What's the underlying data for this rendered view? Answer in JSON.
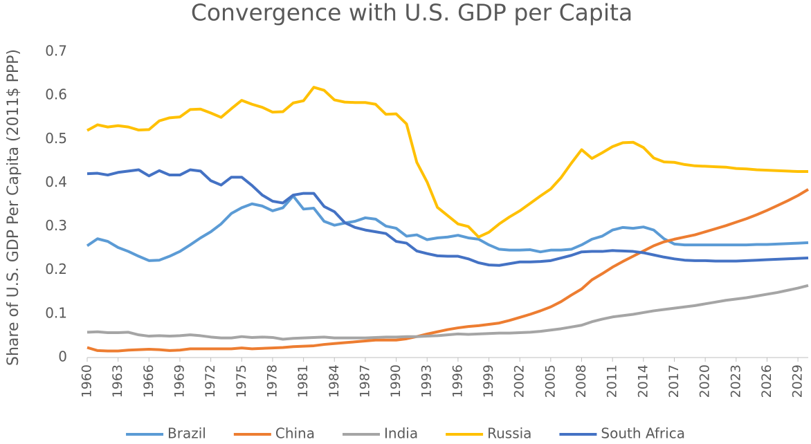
{
  "chart_data": {
    "type": "line",
    "title": "Convergence with U.S. GDP per Capita",
    "ylabel": "Share of U.S. GDP Per Capita (2011$ PPP)",
    "x": [
      1960,
      1961,
      1962,
      1963,
      1964,
      1965,
      1966,
      1967,
      1968,
      1969,
      1970,
      1971,
      1972,
      1973,
      1974,
      1975,
      1976,
      1977,
      1978,
      1979,
      1980,
      1981,
      1982,
      1983,
      1984,
      1985,
      1986,
      1987,
      1988,
      1989,
      1990,
      1991,
      1992,
      1993,
      1994,
      1995,
      1996,
      1997,
      1998,
      1999,
      2000,
      2001,
      2002,
      2003,
      2004,
      2005,
      2006,
      2007,
      2008,
      2009,
      2010,
      2011,
      2012,
      2013,
      2014,
      2015,
      2016,
      2017,
      2018,
      2019,
      2020,
      2021,
      2022,
      2023,
      2024,
      2025,
      2026,
      2027,
      2028,
      2029,
      2030
    ],
    "xlim": [
      1960,
      2030
    ],
    "xticks": [
      1960,
      1963,
      1966,
      1969,
      1972,
      1975,
      1978,
      1981,
      1984,
      1987,
      1990,
      1993,
      1996,
      1999,
      2002,
      2005,
      2008,
      2011,
      2014,
      2017,
      2020,
      2023,
      2026,
      2029
    ],
    "ylim": [
      0,
      0.7
    ],
    "yticks": [
      0,
      0.1,
      0.2,
      0.3,
      0.4,
      0.5,
      0.6,
      0.7
    ],
    "grid": false,
    "legend": "bottom",
    "series": [
      {
        "name": "Brazil",
        "color": "#5b9bd5",
        "values": [
          0.256,
          0.272,
          0.266,
          0.252,
          0.243,
          0.232,
          0.222,
          0.223,
          0.232,
          0.243,
          0.258,
          0.274,
          0.288,
          0.306,
          0.33,
          0.343,
          0.352,
          0.347,
          0.336,
          0.343,
          0.37,
          0.34,
          0.342,
          0.312,
          0.303,
          0.308,
          0.312,
          0.32,
          0.317,
          0.301,
          0.296,
          0.278,
          0.281,
          0.27,
          0.274,
          0.276,
          0.28,
          0.274,
          0.271,
          0.258,
          0.248,
          0.246,
          0.246,
          0.247,
          0.242,
          0.246,
          0.246,
          0.248,
          0.258,
          0.271,
          0.278,
          0.292,
          0.298,
          0.296,
          0.299,
          0.292,
          0.272,
          0.26,
          0.258,
          0.258,
          0.258,
          0.258,
          0.258,
          0.258,
          0.258,
          0.259,
          0.259,
          0.26,
          0.261,
          0.262,
          0.263
        ]
      },
      {
        "name": "China",
        "color": "#ed7d31",
        "values": [
          0.023,
          0.016,
          0.015,
          0.015,
          0.017,
          0.018,
          0.019,
          0.018,
          0.016,
          0.017,
          0.02,
          0.02,
          0.02,
          0.02,
          0.02,
          0.022,
          0.02,
          0.021,
          0.022,
          0.023,
          0.025,
          0.026,
          0.027,
          0.03,
          0.032,
          0.034,
          0.036,
          0.038,
          0.04,
          0.04,
          0.04,
          0.043,
          0.048,
          0.054,
          0.059,
          0.064,
          0.068,
          0.071,
          0.073,
          0.076,
          0.079,
          0.085,
          0.092,
          0.099,
          0.107,
          0.116,
          0.128,
          0.143,
          0.157,
          0.178,
          0.192,
          0.207,
          0.22,
          0.232,
          0.244,
          0.256,
          0.265,
          0.271,
          0.276,
          0.281,
          0.288,
          0.295,
          0.302,
          0.31,
          0.318,
          0.327,
          0.337,
          0.348,
          0.359,
          0.371,
          0.385
        ]
      },
      {
        "name": "India",
        "color": "#a5a5a5",
        "values": [
          0.058,
          0.059,
          0.057,
          0.057,
          0.058,
          0.052,
          0.049,
          0.05,
          0.049,
          0.05,
          0.052,
          0.05,
          0.047,
          0.045,
          0.045,
          0.048,
          0.046,
          0.047,
          0.046,
          0.042,
          0.044,
          0.045,
          0.046,
          0.047,
          0.045,
          0.045,
          0.045,
          0.045,
          0.046,
          0.047,
          0.047,
          0.048,
          0.048,
          0.049,
          0.05,
          0.052,
          0.054,
          0.053,
          0.054,
          0.055,
          0.056,
          0.056,
          0.057,
          0.058,
          0.06,
          0.063,
          0.066,
          0.07,
          0.074,
          0.082,
          0.088,
          0.093,
          0.096,
          0.099,
          0.103,
          0.107,
          0.11,
          0.113,
          0.116,
          0.119,
          0.123,
          0.127,
          0.131,
          0.134,
          0.137,
          0.141,
          0.145,
          0.149,
          0.154,
          0.159,
          0.165
        ]
      },
      {
        "name": "Russia",
        "color": "#ffc000",
        "values": [
          0.52,
          0.533,
          0.528,
          0.531,
          0.528,
          0.521,
          0.522,
          0.542,
          0.549,
          0.551,
          0.568,
          0.569,
          0.56,
          0.55,
          0.57,
          0.589,
          0.58,
          0.573,
          0.562,
          0.563,
          0.583,
          0.588,
          0.619,
          0.612,
          0.59,
          0.585,
          0.584,
          0.584,
          0.58,
          0.557,
          0.558,
          0.535,
          0.447,
          0.402,
          0.344,
          0.325,
          0.306,
          0.3,
          0.276,
          0.287,
          0.306,
          0.322,
          0.336,
          0.353,
          0.37,
          0.386,
          0.412,
          0.445,
          0.476,
          0.456,
          0.469,
          0.483,
          0.492,
          0.493,
          0.481,
          0.457,
          0.448,
          0.447,
          0.442,
          0.439,
          0.438,
          0.437,
          0.436,
          0.433,
          0.432,
          0.43,
          0.429,
          0.428,
          0.427,
          0.426,
          0.426
        ]
      },
      {
        "name": "South Africa",
        "color": "#4472c4",
        "values": [
          0.421,
          0.422,
          0.418,
          0.424,
          0.427,
          0.43,
          0.416,
          0.428,
          0.418,
          0.418,
          0.43,
          0.427,
          0.405,
          0.395,
          0.413,
          0.413,
          0.394,
          0.372,
          0.358,
          0.354,
          0.372,
          0.376,
          0.376,
          0.346,
          0.334,
          0.309,
          0.298,
          0.292,
          0.288,
          0.284,
          0.266,
          0.262,
          0.244,
          0.238,
          0.233,
          0.232,
          0.232,
          0.226,
          0.217,
          0.212,
          0.211,
          0.215,
          0.219,
          0.219,
          0.22,
          0.222,
          0.228,
          0.234,
          0.242,
          0.243,
          0.243,
          0.245,
          0.244,
          0.243,
          0.24,
          0.235,
          0.23,
          0.226,
          0.223,
          0.222,
          0.222,
          0.221,
          0.221,
          0.221,
          0.222,
          0.223,
          0.224,
          0.225,
          0.226,
          0.227,
          0.228
        ]
      }
    ]
  }
}
